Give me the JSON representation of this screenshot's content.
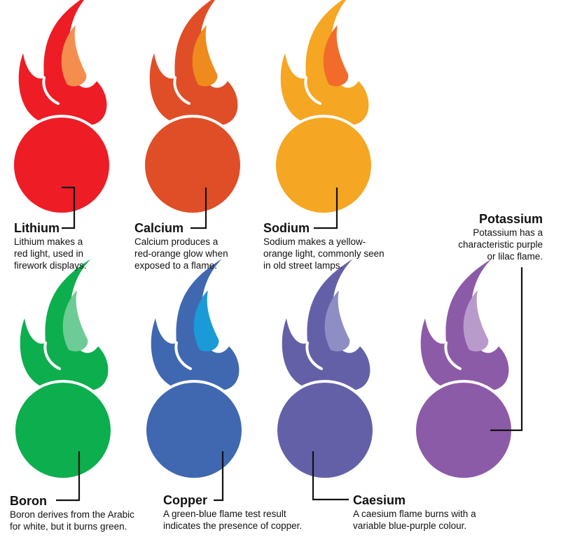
{
  "elements": [
    {
      "id": "lithium",
      "name": "Lithium",
      "description": "Lithium makes a\nred light, used in\nfirework displays.",
      "flame_color": "#EE1C25",
      "inner_color": "#F58D4F",
      "ball_color": "#EE1C25"
    },
    {
      "id": "calcium",
      "name": "Calcium",
      "description": "Calcium produces a\nred-orange glow when\nexposed to a flame.",
      "flame_color": "#E04E27",
      "inner_color": "#EE8A1E",
      "ball_color": "#E04E27"
    },
    {
      "id": "sodium",
      "name": "Sodium",
      "description": "Sodium makes a yellow-\norange light, commonly seen\nin old street lamps.",
      "flame_color": "#F5A623",
      "inner_color": "#F26B2A",
      "ball_color": "#F5A623"
    },
    {
      "id": "potassium",
      "name": "Potassium",
      "description": "Potassium has a\ncharacteristic purple\nor lilac flame.",
      "flame_color": "#8C5BA8",
      "inner_color": "#B99BCB",
      "ball_color": "#8C5BA8"
    },
    {
      "id": "boron",
      "name": "Boron",
      "description": "Boron derives from the Arabic\nfor white, but it burns green.",
      "flame_color": "#0DAE4E",
      "inner_color": "#6DCB95",
      "ball_color": "#0DAE4E"
    },
    {
      "id": "copper",
      "name": "Copper",
      "description": "A green-blue flame test result\nindicates the presence of copper.",
      "flame_color": "#3F68B1",
      "inner_color": "#1A9AD6",
      "ball_color": "#3F68B1"
    },
    {
      "id": "caesium",
      "name": "Caesium",
      "description": "A caesium flame burns with a\nvariable blue-purple colour.",
      "flame_color": "#6460A8",
      "inner_color": "#8E8EC4",
      "ball_color": "#6460A8"
    }
  ]
}
